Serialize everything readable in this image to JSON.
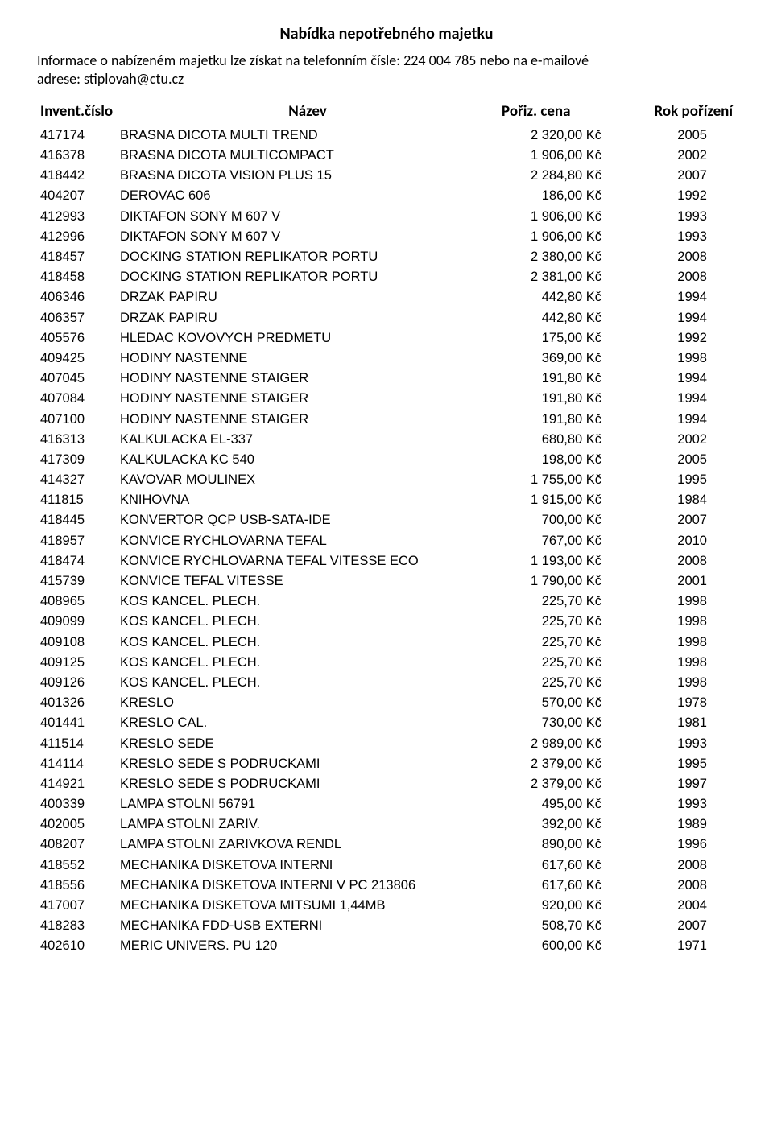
{
  "title": "Nabídka nepotřebného majetku",
  "intro_line1": "Informace o nabízeném majetku lze získat na telefonním čísle: 224 004 785 nebo na e-mailové",
  "intro_line2": "adrese: stiplovah@ctu.cz",
  "headers": {
    "id": "Invent.číslo",
    "name": "Název",
    "price": "Pořiz. cena",
    "year": "Rok pořízení"
  },
  "rows": [
    {
      "id": "417174",
      "name": "BRASNA DICOTA MULTI TREND",
      "price": "2 320,00 Kč",
      "year": "2005"
    },
    {
      "id": "416378",
      "name": "BRASNA DICOTA MULTICOMPACT",
      "price": "1 906,00 Kč",
      "year": "2002"
    },
    {
      "id": "418442",
      "name": "BRASNA DICOTA VISION PLUS 15",
      "price": "2 284,80 Kč",
      "year": "2007"
    },
    {
      "id": "404207",
      "name": "DEROVAC 606",
      "price": "186,00 Kč",
      "year": "1992"
    },
    {
      "id": "412993",
      "name": "DIKTAFON SONY M 607 V",
      "price": "1 906,00 Kč",
      "year": "1993"
    },
    {
      "id": "412996",
      "name": "DIKTAFON SONY M 607 V",
      "price": "1 906,00 Kč",
      "year": "1993"
    },
    {
      "id": "418457",
      "name": "DOCKING STATION REPLIKATOR PORTU",
      "price": "2 380,00 Kč",
      "year": "2008"
    },
    {
      "id": "418458",
      "name": "DOCKING STATION REPLIKATOR PORTU",
      "price": "2 381,00 Kč",
      "year": "2008"
    },
    {
      "id": "406346",
      "name": "DRZAK PAPIRU",
      "price": "442,80 Kč",
      "year": "1994"
    },
    {
      "id": "406357",
      "name": "DRZAK PAPIRU",
      "price": "442,80 Kč",
      "year": "1994"
    },
    {
      "id": "405576",
      "name": "HLEDAC KOVOVYCH PREDMETU",
      "price": "175,00 Kč",
      "year": "1992"
    },
    {
      "id": "409425",
      "name": "HODINY NASTENNE",
      "price": "369,00 Kč",
      "year": "1998"
    },
    {
      "id": "407045",
      "name": "HODINY NASTENNE  STAIGER",
      "price": "191,80 Kč",
      "year": "1994"
    },
    {
      "id": "407084",
      "name": "HODINY NASTENNE  STAIGER",
      "price": "191,80 Kč",
      "year": "1994"
    },
    {
      "id": "407100",
      "name": "HODINY NASTENNE  STAIGER",
      "price": "191,80 Kč",
      "year": "1994"
    },
    {
      "id": "416313",
      "name": "KALKULACKA EL-337",
      "price": "680,80 Kč",
      "year": "2002"
    },
    {
      "id": "417309",
      "name": "KALKULACKA KC 540",
      "price": "198,00 Kč",
      "year": "2005"
    },
    {
      "id": "414327",
      "name": "KAVOVAR MOULINEX",
      "price": "1 755,00 Kč",
      "year": "1995"
    },
    {
      "id": "411815",
      "name": "KNIHOVNA",
      "price": "1 915,00 Kč",
      "year": "1984"
    },
    {
      "id": "418445",
      "name": "KONVERTOR QCP USB-SATA-IDE",
      "price": "700,00 Kč",
      "year": "2007"
    },
    {
      "id": "418957",
      "name": "KONVICE RYCHLOVARNA TEFAL",
      "price": "767,00 Kč",
      "year": "2010"
    },
    {
      "id": "418474",
      "name": "KONVICE RYCHLOVARNA TEFAL VITESSE ECO",
      "price": "1 193,00 Kč",
      "year": "2008"
    },
    {
      "id": "415739",
      "name": "KONVICE TEFAL VITESSE",
      "price": "1 790,00 Kč",
      "year": "2001"
    },
    {
      "id": "408965",
      "name": "KOS KANCEL. PLECH.",
      "price": "225,70 Kč",
      "year": "1998"
    },
    {
      "id": "409099",
      "name": "KOS KANCEL. PLECH.",
      "price": "225,70 Kč",
      "year": "1998"
    },
    {
      "id": "409108",
      "name": "KOS KANCEL. PLECH.",
      "price": "225,70 Kč",
      "year": "1998"
    },
    {
      "id": "409125",
      "name": "KOS KANCEL. PLECH.",
      "price": "225,70 Kč",
      "year": "1998"
    },
    {
      "id": "409126",
      "name": "KOS KANCEL. PLECH.",
      "price": "225,70 Kč",
      "year": "1998"
    },
    {
      "id": "401326",
      "name": "KRESLO",
      "price": "570,00 Kč",
      "year": "1978"
    },
    {
      "id": "401441",
      "name": "KRESLO CAL.",
      "price": "730,00 Kč",
      "year": "1981"
    },
    {
      "id": "411514",
      "name": "KRESLO SEDE",
      "price": "2 989,00 Kč",
      "year": "1993"
    },
    {
      "id": "414114",
      "name": "KRESLO SEDE S PODRUCKAMI",
      "price": "2 379,00 Kč",
      "year": "1995"
    },
    {
      "id": "414921",
      "name": "KRESLO SEDE S PODRUCKAMI",
      "price": "2 379,00 Kč",
      "year": "1997"
    },
    {
      "id": "400339",
      "name": "LAMPA STOLNI 56791",
      "price": "495,00 Kč",
      "year": "1993"
    },
    {
      "id": "402005",
      "name": "LAMPA STOLNI ZARIV.",
      "price": "392,00 Kč",
      "year": "1989"
    },
    {
      "id": "408207",
      "name": "LAMPA STOLNI ZARIVKOVA RENDL",
      "price": "890,00 Kč",
      "year": "1996"
    },
    {
      "id": "418552",
      "name": "MECHANIKA DISKETOVA INTERNI",
      "price": "617,60 Kč",
      "year": "2008"
    },
    {
      "id": "418556",
      "name": "MECHANIKA DISKETOVA INTERNI V PC 213806",
      "price": "617,60 Kč",
      "year": "2008"
    },
    {
      "id": "417007",
      "name": "MECHANIKA DISKETOVA MITSUMI 1,44MB",
      "price": "920,00 Kč",
      "year": "2004"
    },
    {
      "id": "418283",
      "name": "MECHANIKA FDD-USB EXTERNI",
      "price": "508,70 Kč",
      "year": "2007"
    },
    {
      "id": "402610",
      "name": "MERIC UNIVERS. PU 120",
      "price": "600,00 Kč",
      "year": "1971"
    }
  ]
}
